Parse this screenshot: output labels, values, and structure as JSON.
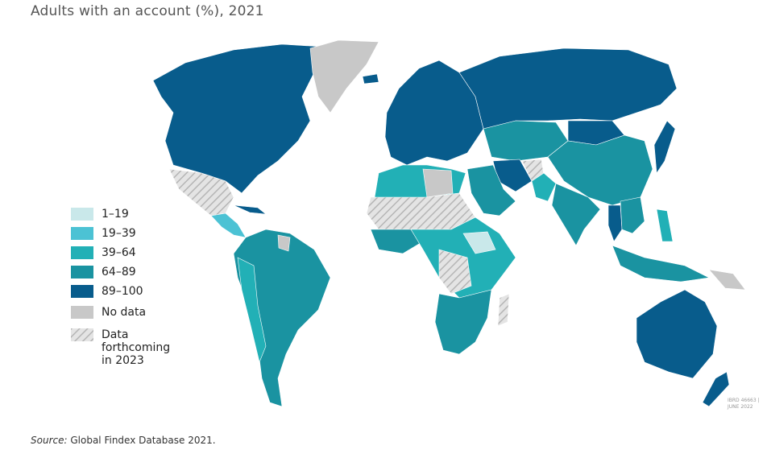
{
  "title": "Adults with an account (%), 2021",
  "legend": [
    {
      "label": "1–19",
      "color": "#c9e8ea"
    },
    {
      "label": "19–39",
      "color": "#4cc2d4"
    },
    {
      "label": "39–64",
      "color": "#22b0b6"
    },
    {
      "label": "64–89",
      "color": "#1a93a1"
    },
    {
      "label": "89–100",
      "color": "#085c8c"
    },
    {
      "label": "No data",
      "color": "#c8c8c8"
    },
    {
      "label": "Data forthcoming in 2023",
      "color": "hatch"
    }
  ],
  "source": {
    "prefix": "Source:",
    "text": "Global Findex Database 2021."
  },
  "map_id": [
    "IBRD 46663 |",
    "JUNE 2022"
  ]
}
